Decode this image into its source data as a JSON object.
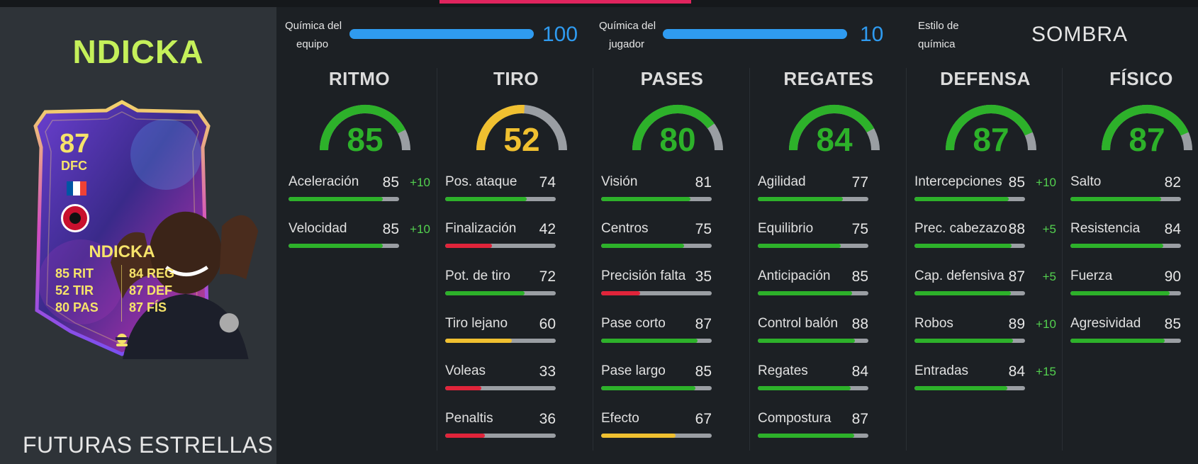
{
  "player": {
    "name_title": "NDICKA",
    "card_name": "NDICKA",
    "rating": "87",
    "position": "DFC",
    "promo": "FUTURAS ESTRELLAS",
    "card_stats": [
      {
        "value": "85",
        "label": "RIT"
      },
      {
        "value": "52",
        "label": "TIR"
      },
      {
        "value": "80",
        "label": "PAS"
      },
      {
        "value": "84",
        "label": "REG"
      },
      {
        "value": "87",
        "label": "DEF"
      },
      {
        "value": "87",
        "label": "FÍS"
      }
    ],
    "nation_flag_colors": [
      "#0055a4",
      "#ffffff",
      "#ef4135"
    ],
    "club_badge_icon": "eagle-badge-icon",
    "chem_style_icon": "shadow-mask-icon"
  },
  "chemistry": {
    "team_label_1": "Química del",
    "team_label_2": "equipo",
    "team_value": 100,
    "team_max": 100,
    "player_label_1": "Química del",
    "player_label_2": "jugador",
    "player_value": 10,
    "player_max": 10,
    "style_label_1": "Estilo de",
    "style_label_2": "química",
    "style_value": "SOMBRA",
    "bar_color": "#2f9bf0"
  },
  "colors": {
    "green": "#2db12a",
    "yellow": "#f0c030",
    "red": "#e0243a",
    "track": "#9a9ea3",
    "boost": "#53d14f",
    "title_green": "#c5f05a"
  },
  "categories": [
    {
      "title": "RITMO",
      "value": 85,
      "stats": [
        {
          "name": "Aceleración",
          "value": 85,
          "boost": "+10"
        },
        {
          "name": "Velocidad",
          "value": 85,
          "boost": "+10"
        }
      ]
    },
    {
      "title": "TIRO",
      "value": 52,
      "stats": [
        {
          "name": "Pos. ataque",
          "value": 74,
          "boost": ""
        },
        {
          "name": "Finalización",
          "value": 42,
          "boost": ""
        },
        {
          "name": "Pot. de tiro",
          "value": 72,
          "boost": ""
        },
        {
          "name": "Tiro lejano",
          "value": 60,
          "boost": ""
        },
        {
          "name": "Voleas",
          "value": 33,
          "boost": ""
        },
        {
          "name": "Penaltis",
          "value": 36,
          "boost": ""
        }
      ]
    },
    {
      "title": "PASES",
      "value": 80,
      "stats": [
        {
          "name": "Visión",
          "value": 81,
          "boost": ""
        },
        {
          "name": "Centros",
          "value": 75,
          "boost": ""
        },
        {
          "name": "Precisión falta",
          "value": 35,
          "boost": ""
        },
        {
          "name": "Pase corto",
          "value": 87,
          "boost": ""
        },
        {
          "name": "Pase largo",
          "value": 85,
          "boost": ""
        },
        {
          "name": "Efecto",
          "value": 67,
          "boost": ""
        }
      ]
    },
    {
      "title": "REGATES",
      "value": 84,
      "stats": [
        {
          "name": "Agilidad",
          "value": 77,
          "boost": ""
        },
        {
          "name": "Equilibrio",
          "value": 75,
          "boost": ""
        },
        {
          "name": "Anticipación",
          "value": 85,
          "boost": ""
        },
        {
          "name": "Control balón",
          "value": 88,
          "boost": ""
        },
        {
          "name": "Regates",
          "value": 84,
          "boost": ""
        },
        {
          "name": "Compostura",
          "value": 87,
          "boost": ""
        }
      ]
    },
    {
      "title": "DEFENSA",
      "value": 87,
      "stats": [
        {
          "name": "Intercepciones",
          "value": 85,
          "boost": "+10"
        },
        {
          "name": "Prec. cabezazo",
          "value": 88,
          "boost": "+5"
        },
        {
          "name": "Cap. defensiva",
          "value": 87,
          "boost": "+5"
        },
        {
          "name": "Robos",
          "value": 89,
          "boost": "+10"
        },
        {
          "name": "Entradas",
          "value": 84,
          "boost": "+15"
        }
      ]
    },
    {
      "title": "FÍSICO",
      "value": 87,
      "stats": [
        {
          "name": "Salto",
          "value": 82,
          "boost": ""
        },
        {
          "name": "Resistencia",
          "value": 84,
          "boost": ""
        },
        {
          "name": "Fuerza",
          "value": 90,
          "boost": ""
        },
        {
          "name": "Agresividad",
          "value": 85,
          "boost": ""
        }
      ]
    }
  ]
}
